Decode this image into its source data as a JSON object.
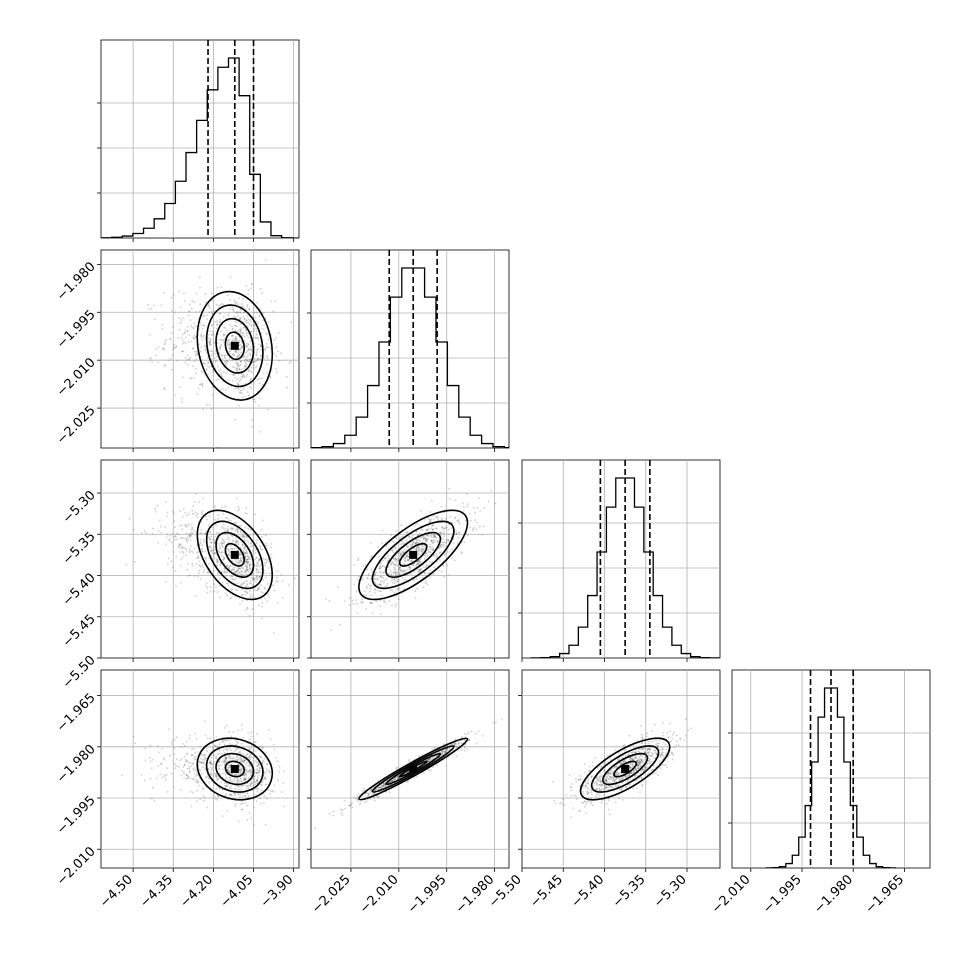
{
  "chart_data": {
    "type": "corner",
    "title": "",
    "legend": "none",
    "grid": true,
    "parameters": [
      {
        "index": 0,
        "mean": -4.12,
        "std": 0.07,
        "skew": "left",
        "quantiles": [
          -4.22,
          -4.12,
          -4.05
        ],
        "range": [
          -4.62,
          -3.88
        ],
        "ticks": [
          -4.5,
          -4.35,
          -4.2,
          -4.05,
          -3.9
        ],
        "tick_labels": [
          "−4.50",
          "−4.35",
          "−4.20",
          "−4.05",
          "−3.90"
        ]
      },
      {
        "index": 1,
        "mean": -2.0055,
        "std": 0.0085,
        "quantiles": [
          -2.013,
          -2.0055,
          -1.998
        ],
        "range": [
          -2.0375,
          -1.9755
        ],
        "ticks": [
          -2.025,
          -2.01,
          -1.995,
          -1.98
        ],
        "tick_labels": [
          "−2.025",
          "−2.010",
          "−1.995",
          "−1.980"
        ]
      },
      {
        "index": 2,
        "mean": -5.375,
        "std": 0.027,
        "quantiles": [
          -5.405,
          -5.375,
          -5.345
        ],
        "range": [
          -5.5,
          -5.26
        ],
        "ticks": [
          -5.5,
          -5.45,
          -5.4,
          -5.35,
          -5.3
        ],
        "tick_labels": [
          "−5.50",
          "−5.45",
          "−5.40",
          "−5.35",
          "−5.30"
        ]
      },
      {
        "index": 3,
        "mean": -1.9865,
        "std": 0.0045,
        "quantiles": [
          -1.9925,
          -1.9865,
          -1.98
        ],
        "range": [
          -2.0155,
          -1.9575
        ],
        "ticks": [
          -2.01,
          -1.995,
          -1.98,
          -1.965
        ],
        "tick_labels": [
          "−2.010",
          "−1.995",
          "−1.980",
          "−1.965"
        ]
      }
    ],
    "correlations": [
      {
        "x": 0,
        "y": 1,
        "rho": -0.15
      },
      {
        "x": 0,
        "y": 2,
        "rho": -0.45
      },
      {
        "x": 1,
        "y": 2,
        "rho": 0.72
      },
      {
        "x": 0,
        "y": 3,
        "rho": -0.15
      },
      {
        "x": 1,
        "y": 3,
        "rho": 0.97
      },
      {
        "x": 2,
        "y": 3,
        "rho": 0.72
      }
    ],
    "contour_levels_sigma": [
      0.5,
      1.0,
      1.5,
      2.0
    ],
    "histogram_bins": 20
  }
}
